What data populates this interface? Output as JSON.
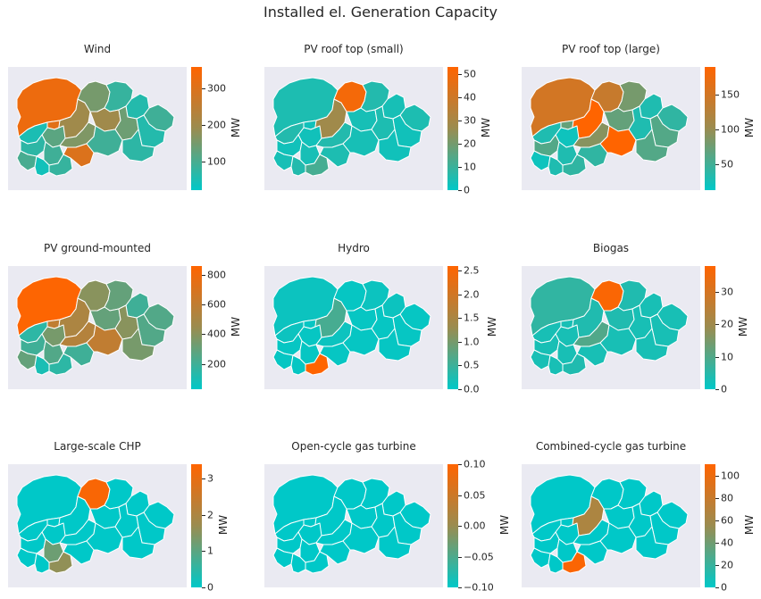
{
  "title": "Installed el. Generation Capacity",
  "colorscale": {
    "low": "#00c8c8",
    "mid": "#9a8c50",
    "high": "#ff6400"
  },
  "chart_data": [
    {
      "type": "heatmap",
      "title": "Wind",
      "unit": "MW",
      "range": [
        20,
        360
      ],
      "ticks": [
        "100",
        "200",
        "300"
      ],
      "tick_values": [
        100,
        200,
        300
      ],
      "values": [
        330,
        310,
        200,
        150,
        80,
        60,
        90,
        120,
        200,
        50,
        70,
        90,
        160,
        140,
        60,
        100,
        80,
        300,
        90,
        40,
        70
      ]
    },
    {
      "type": "heatmap",
      "title": "PV roof top (small)",
      "unit": "MW",
      "range": [
        0,
        53
      ],
      "ticks": [
        "0",
        "10",
        "20",
        "30",
        "40",
        "50"
      ],
      "tick_values": [
        0,
        10,
        20,
        30,
        40,
        50
      ],
      "values": [
        5,
        3,
        28,
        50,
        6,
        4,
        5,
        3,
        4,
        6,
        3,
        4,
        6,
        5,
        3,
        4,
        12,
        5,
        4,
        6,
        3
      ]
    },
    {
      "type": "heatmap",
      "title": "PV roof top (large)",
      "unit": "MW",
      "range": [
        12,
        190
      ],
      "ticks": [
        "50",
        "100",
        "150"
      ],
      "tick_values": [
        50,
        100,
        150
      ],
      "values": [
        150,
        70,
        190,
        140,
        80,
        30,
        40,
        20,
        70,
        30,
        60,
        30,
        90,
        30,
        60,
        20,
        40,
        40,
        190,
        30,
        60
      ]
    },
    {
      "type": "heatmap",
      "title": "PV ground-mounted",
      "unit": "MW",
      "range": [
        30,
        860
      ],
      "ticks": [
        "200",
        "400",
        "600",
        "800"
      ],
      "tick_values": [
        200,
        400,
        600,
        800
      ],
      "values": [
        850,
        600,
        520,
        400,
        300,
        200,
        250,
        350,
        300,
        150,
        200,
        250,
        550,
        400,
        250,
        300,
        150,
        200,
        600,
        100,
        350
      ]
    },
    {
      "type": "heatmap",
      "title": "Hydro",
      "unit": "MW",
      "range": [
        0,
        2.6
      ],
      "ticks": [
        "0.0",
        "0.5",
        "1.0",
        "1.5",
        "2.0",
        "2.5"
      ],
      "tick_values": [
        0,
        0.5,
        1,
        1.5,
        2,
        2.5
      ],
      "values": [
        0.1,
        0.05,
        0.6,
        0.05,
        0.1,
        0.1,
        0.05,
        0.05,
        0.05,
        0.1,
        0.05,
        0.05,
        0.1,
        0.05,
        0.05,
        0.05,
        2.6,
        0.05,
        0.05,
        0.05,
        0.05
      ]
    },
    {
      "type": "heatmap",
      "title": "Biogas",
      "unit": "MW",
      "range": [
        0,
        38
      ],
      "ticks": [
        "0",
        "10",
        "20",
        "30"
      ],
      "tick_values": [
        0,
        10,
        20,
        30
      ],
      "values": [
        6,
        3,
        4,
        37,
        4,
        3,
        3,
        3,
        4,
        3,
        3,
        3,
        10,
        3,
        3,
        3,
        4,
        3,
        3,
        3,
        3
      ]
    },
    {
      "type": "heatmap",
      "title": "Large-scale CHP",
      "unit": "MW",
      "range": [
        0,
        3.4
      ],
      "ticks": [
        "0",
        "1",
        "2",
        "3"
      ],
      "tick_values": [
        0,
        1,
        2,
        3
      ],
      "values": [
        0,
        0,
        0,
        3.3,
        0,
        0,
        0,
        0,
        0,
        0,
        0,
        1.2,
        0,
        0,
        0,
        0,
        1.6,
        0,
        0,
        0,
        0
      ]
    },
    {
      "type": "heatmap",
      "title": "Open-cycle gas turbine",
      "unit": "MW",
      "range": [
        -0.1,
        0.1
      ],
      "ticks": [
        "−0.10",
        "−0.05",
        "0.00",
        "0.05",
        "0.10"
      ],
      "tick_values": [
        -0.1,
        -0.05,
        0,
        0.05,
        0.1
      ],
      "values": [
        -0.1,
        -0.1,
        -0.1,
        -0.1,
        -0.1,
        -0.1,
        -0.1,
        -0.1,
        -0.1,
        -0.1,
        -0.1,
        -0.1,
        -0.1,
        -0.1,
        -0.1,
        -0.1,
        -0.1,
        -0.1,
        -0.1,
        -0.1,
        -0.1
      ]
    },
    {
      "type": "heatmap",
      "title": "Combined-cycle gas turbine",
      "unit": "MW",
      "range": [
        0,
        110
      ],
      "ticks": [
        "0",
        "20",
        "40",
        "60",
        "80",
        "100"
      ],
      "tick_values": [
        0,
        20,
        40,
        60,
        80,
        100
      ],
      "values": [
        0,
        0,
        65,
        0,
        0,
        0,
        0,
        0,
        0,
        0,
        0,
        0,
        0,
        0,
        0,
        0,
        108,
        0,
        0,
        0,
        0
      ]
    }
  ]
}
